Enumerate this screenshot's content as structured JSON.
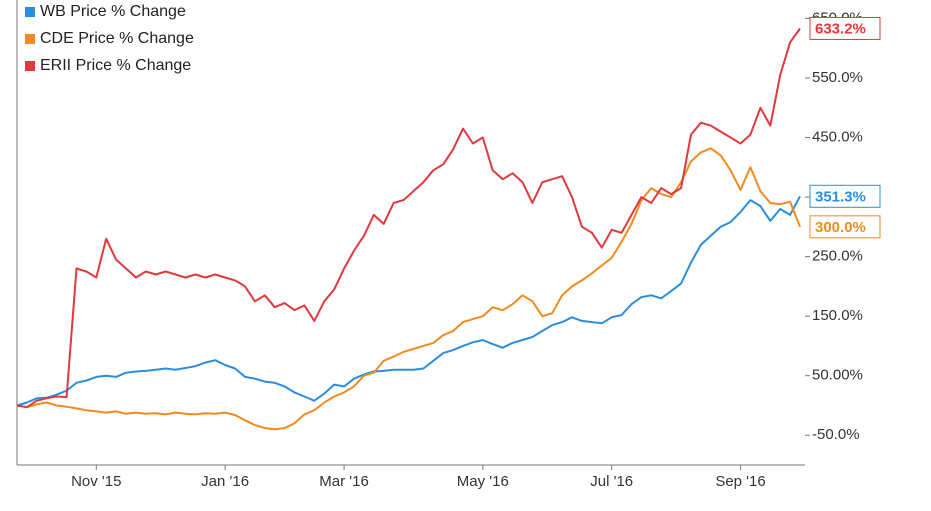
{
  "chart_data": {
    "type": "line",
    "legend": "upper left",
    "grid": false,
    "categories": [
      null,
      null,
      null,
      null,
      null,
      null,
      null,
      null,
      "Nov '15",
      null,
      null,
      null,
      null,
      null,
      null,
      null,
      null,
      null,
      null,
      null,
      null,
      "Jan '16",
      null,
      null,
      null,
      null,
      null,
      null,
      null,
      null,
      null,
      null,
      null,
      "Mar '16",
      null,
      null,
      null,
      null,
      null,
      null,
      null,
      null,
      null,
      null,
      null,
      null,
      null,
      "May '16",
      null,
      null,
      null,
      null,
      null,
      null,
      null,
      null,
      null,
      null,
      null,
      null,
      "Jul '16",
      null,
      null,
      null,
      null,
      null,
      null,
      null,
      null,
      null,
      null,
      null,
      null,
      "Sep '16",
      null,
      null,
      null,
      null,
      null,
      null
    ],
    "ylim": [
      -100,
      681
    ],
    "yticks": [
      {
        "value": -50,
        "label": "-50.0%"
      },
      {
        "value": 50,
        "label": "50.00%"
      },
      {
        "value": 150,
        "label": "150.0%"
      },
      {
        "value": 250,
        "label": "250.0%"
      },
      {
        "value": 350,
        "label": "350.0%"
      },
      {
        "value": 450,
        "label": "450.0%"
      },
      {
        "value": 550,
        "label": "550.0%"
      },
      {
        "value": 650,
        "label": "650.0%"
      }
    ],
    "series": [
      {
        "name": "WB Price % Change",
        "color": "#2a8de0",
        "values": [
          0,
          5,
          12,
          13,
          18,
          25,
          38,
          42,
          48,
          50,
          48,
          55,
          57,
          58,
          60,
          62,
          60,
          63,
          66,
          72,
          76,
          68,
          62,
          48,
          45,
          40,
          38,
          32,
          22,
          15,
          8,
          20,
          35,
          32,
          45,
          52,
          57,
          58,
          60,
          60,
          60,
          62,
          75,
          88,
          93,
          100,
          106,
          110,
          103,
          97,
          105,
          110,
          115,
          125,
          135,
          140,
          148,
          142,
          140,
          138,
          148,
          152,
          170,
          182,
          185,
          180,
          192,
          205,
          240,
          270,
          285,
          300,
          308,
          325,
          345,
          335,
          310,
          330,
          320,
          351.3
        ],
        "value_labels": [
          null,
          null,
          null,
          null,
          null,
          null,
          null,
          null,
          null,
          null,
          null,
          null,
          null,
          null,
          null,
          null,
          null,
          null,
          null,
          null,
          null,
          null,
          null,
          null,
          null,
          null,
          null,
          null,
          null,
          null,
          null,
          null,
          null,
          null,
          null,
          null,
          null,
          null,
          null,
          null,
          null,
          null,
          null,
          null,
          null,
          null,
          null,
          null,
          null,
          null,
          null,
          null,
          null,
          null,
          null,
          null,
          null,
          null,
          null,
          null,
          null,
          null,
          null,
          null,
          null,
          null,
          null,
          null,
          null,
          null,
          null,
          null,
          null,
          null,
          null,
          null,
          null,
          null,
          null,
          "351.3%"
        ]
      },
      {
        "name": "CDE Price % Change",
        "color": "#f28b1f",
        "values": [
          0,
          -3,
          2,
          5,
          0,
          -2,
          -5,
          -8,
          -10,
          -12,
          -10,
          -14,
          -12,
          -14,
          -13,
          -15,
          -12,
          -14,
          -15,
          -13,
          -14,
          -12,
          -16,
          -25,
          -33,
          -38,
          -40,
          -38,
          -30,
          -15,
          -8,
          5,
          15,
          22,
          32,
          50,
          55,
          75,
          82,
          90,
          95,
          100,
          105,
          118,
          125,
          140,
          145,
          150,
          165,
          160,
          170,
          185,
          175,
          150,
          155,
          185,
          200,
          210,
          222,
          235,
          248,
          275,
          305,
          345,
          365,
          355,
          350,
          375,
          410,
          425,
          432,
          420,
          395,
          362,
          400,
          360,
          340,
          338,
          342,
          300
        ],
        "value_labels": [
          null,
          null,
          null,
          null,
          null,
          null,
          null,
          null,
          null,
          null,
          null,
          null,
          null,
          null,
          null,
          null,
          null,
          null,
          null,
          null,
          null,
          null,
          null,
          null,
          null,
          null,
          null,
          null,
          null,
          null,
          null,
          null,
          null,
          null,
          null,
          null,
          null,
          null,
          null,
          null,
          null,
          null,
          null,
          null,
          null,
          null,
          null,
          null,
          null,
          null,
          null,
          null,
          null,
          null,
          null,
          null,
          null,
          null,
          null,
          null,
          null,
          null,
          null,
          null,
          null,
          null,
          null,
          null,
          null,
          null,
          null,
          null,
          null,
          null,
          null,
          null,
          null,
          null,
          null,
          "300.0%"
        ]
      },
      {
        "name": "ERII Price % Change",
        "color": "#e0393e",
        "values": [
          0,
          -3,
          8,
          12,
          15,
          14,
          230,
          225,
          215,
          280,
          245,
          230,
          215,
          225,
          220,
          225,
          220,
          215,
          220,
          215,
          220,
          215,
          210,
          200,
          175,
          185,
          165,
          172,
          160,
          168,
          142,
          175,
          195,
          230,
          260,
          285,
          320,
          305,
          340,
          345,
          360,
          375,
          395,
          405,
          430,
          465,
          440,
          450,
          395,
          380,
          390,
          375,
          340,
          375,
          380,
          385,
          350,
          300,
          290,
          265,
          295,
          290,
          320,
          350,
          340,
          365,
          355,
          365,
          455,
          475,
          470,
          460,
          450,
          440,
          455,
          500,
          470,
          555,
          610,
          633.2
        ],
        "value_labels": [
          null,
          null,
          null,
          null,
          null,
          null,
          null,
          null,
          null,
          null,
          null,
          null,
          null,
          null,
          null,
          null,
          null,
          null,
          null,
          null,
          null,
          null,
          null,
          null,
          null,
          null,
          null,
          null,
          null,
          null,
          null,
          null,
          null,
          null,
          null,
          null,
          null,
          null,
          null,
          null,
          null,
          null,
          null,
          null,
          null,
          null,
          null,
          null,
          null,
          null,
          null,
          null,
          null,
          null,
          null,
          null,
          null,
          null,
          null,
          null,
          null,
          null,
          null,
          null,
          null,
          null,
          null,
          null,
          null,
          null,
          null,
          null,
          null,
          null,
          null,
          null,
          null,
          null,
          null,
          "633.2%"
        ]
      }
    ]
  }
}
